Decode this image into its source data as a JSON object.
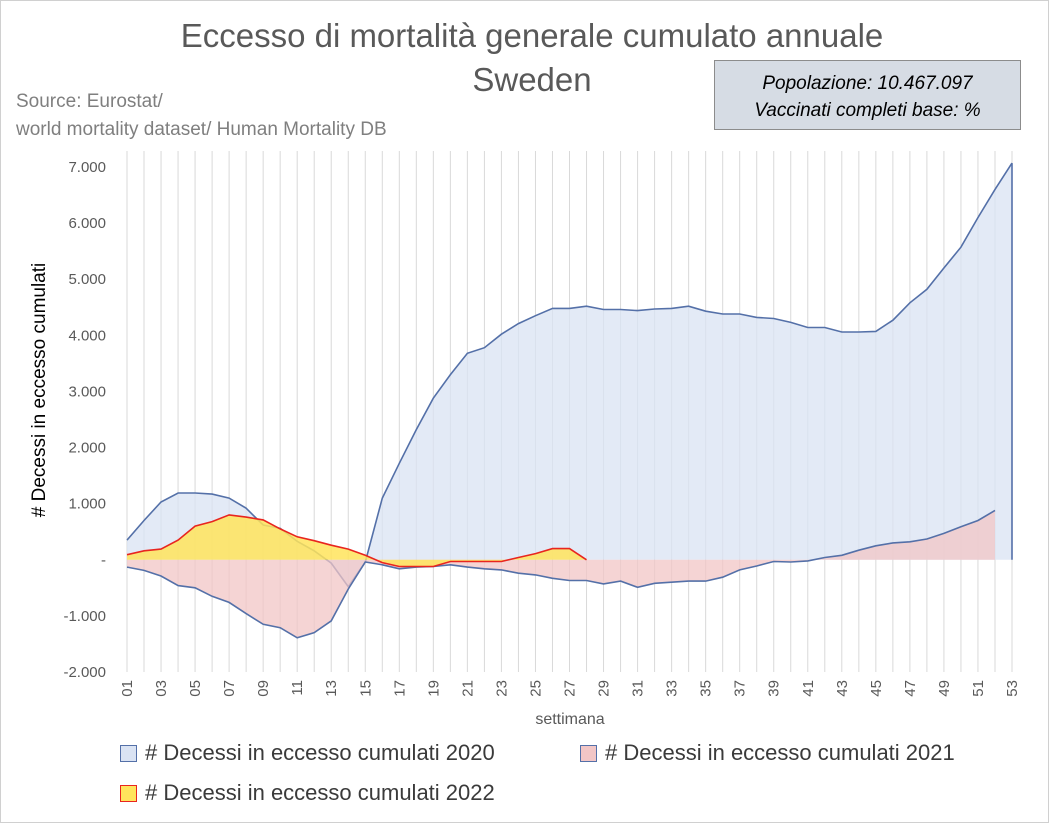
{
  "header": {
    "title_line1": "Eccesso di mortalità generale cumulato annuale",
    "title_line2": "Sweden",
    "source_line1": "Source: Eurostat/",
    "source_line2": "world mortality dataset/ Human Mortality DB"
  },
  "info_box": {
    "line1": "Popolazione: 10.467.097",
    "line2": "Vaccinati completi base: %"
  },
  "chart_data": {
    "type": "area",
    "title": "Eccesso di mortalità generale cumulato annuale",
    "subtitle": "Sweden",
    "xlabel": "settimana",
    "ylabel": "# Decessi in eccesso cumulati",
    "x_tick_labels": [
      "01",
      "03",
      "05",
      "07",
      "09",
      "11",
      "13",
      "15",
      "17",
      "19",
      "21",
      "23",
      "25",
      "27",
      "29",
      "31",
      "33",
      "35",
      "37",
      "39",
      "41",
      "43",
      "45",
      "47",
      "49",
      "51",
      "53"
    ],
    "y_ticks": [
      -2000,
      -1000,
      0,
      1000,
      2000,
      3000,
      4000,
      5000,
      6000,
      7000
    ],
    "y_tick_labels": [
      "-2.000",
      "-1.000",
      "-",
      "1.000",
      "2.000",
      "3.000",
      "4.000",
      "5.000",
      "6.000",
      "7.000"
    ],
    "xlim": [
      1,
      53
    ],
    "ylim": [
      -2000,
      7000
    ],
    "grid": "vertical",
    "legend_position": "bottom",
    "series": [
      {
        "name": "# Decessi in eccesso cumulati 2020",
        "color": "#5470a8",
        "fill": "#dae3f3",
        "x": [
          1,
          2,
          3,
          4,
          5,
          6,
          7,
          8,
          9,
          10,
          11,
          12,
          13,
          14,
          15,
          16,
          17,
          18,
          19,
          20,
          21,
          22,
          23,
          24,
          25,
          26,
          27,
          28,
          29,
          30,
          31,
          32,
          33,
          34,
          35,
          36,
          37,
          38,
          39,
          40,
          41,
          42,
          43,
          44,
          45,
          46,
          47,
          48,
          49,
          50,
          51,
          52,
          53
        ],
        "values": [
          350,
          700,
          1030,
          1190,
          1190,
          1170,
          1100,
          920,
          620,
          560,
          330,
          160,
          -60,
          -480,
          -40,
          1100,
          1720,
          2320,
          2880,
          3300,
          3680,
          3780,
          4020,
          4210,
          4350,
          4480,
          4480,
          4520,
          4460,
          4460,
          4440,
          4470,
          4480,
          4520,
          4430,
          4380,
          4380,
          4320,
          4300,
          4230,
          4140,
          4140,
          4060,
          4060,
          4070,
          4270,
          4580,
          4820,
          5200,
          5570,
          6100,
          6600,
          7070
        ]
      },
      {
        "name": "# Decessi in eccesso cumulati 2021",
        "color": "#5470a8",
        "fill": "#f2c6c6",
        "x": [
          1,
          2,
          3,
          4,
          5,
          6,
          7,
          8,
          9,
          10,
          11,
          12,
          13,
          14,
          15,
          16,
          17,
          18,
          19,
          20,
          21,
          22,
          23,
          24,
          25,
          26,
          27,
          28,
          29,
          30,
          31,
          32,
          33,
          34,
          35,
          36,
          37,
          38,
          39,
          40,
          41,
          42,
          43,
          44,
          45,
          46,
          47,
          48,
          49,
          50,
          51,
          52
        ],
        "values": [
          -130,
          -190,
          -290,
          -460,
          -500,
          -650,
          -760,
          -960,
          -1150,
          -1210,
          -1390,
          -1300,
          -1090,
          -520,
          -40,
          -90,
          -160,
          -130,
          -120,
          -90,
          -130,
          -160,
          -180,
          -240,
          -270,
          -330,
          -370,
          -370,
          -430,
          -380,
          -490,
          -420,
          -400,
          -380,
          -380,
          -310,
          -180,
          -110,
          -30,
          -40,
          -20,
          40,
          80,
          170,
          250,
          300,
          320,
          370,
          470,
          590,
          700,
          880
        ]
      },
      {
        "name": "# Decessi in eccesso cumulati 2022",
        "color": "#e8251f",
        "fill": "#ffe45c",
        "x": [
          1,
          2,
          3,
          4,
          5,
          6,
          7,
          8,
          9,
          10,
          11,
          12,
          13,
          14,
          15,
          16,
          17,
          18,
          19,
          20,
          21,
          22,
          23,
          24,
          25,
          26,
          27,
          28
        ],
        "values": [
          90,
          160,
          190,
          350,
          600,
          680,
          800,
          760,
          710,
          550,
          410,
          340,
          260,
          190,
          80,
          -50,
          -120,
          -120,
          -120,
          -30,
          -30,
          -30,
          -30,
          40,
          110,
          200,
          200,
          0
        ]
      }
    ]
  }
}
